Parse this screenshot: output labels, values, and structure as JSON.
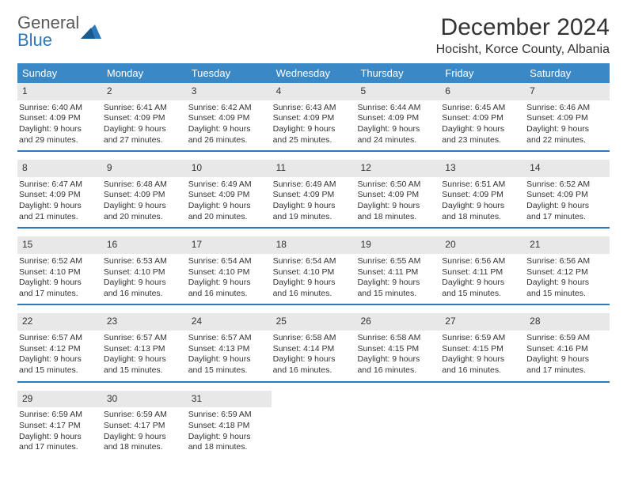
{
  "logo": {
    "word1": "General",
    "word2": "Blue"
  },
  "title": "December 2024",
  "location": "Hocisht, Korce County, Albania",
  "colors": {
    "header_bar": "#3b88c7",
    "week_underline": "#2e78bd",
    "daynum_bg": "#e8e8e8",
    "text": "#333333",
    "logo_blue": "#2e78bd",
    "background": "#ffffff"
  },
  "fonts": {
    "title_size": 30,
    "location_size": 16,
    "weekday_size": 13,
    "body_size": 10.5
  },
  "weekdays": [
    "Sunday",
    "Monday",
    "Tuesday",
    "Wednesday",
    "Thursday",
    "Friday",
    "Saturday"
  ],
  "weeks": [
    [
      {
        "num": "1",
        "sunrise": "Sunrise: 6:40 AM",
        "sunset": "Sunset: 4:09 PM",
        "daylight1": "Daylight: 9 hours",
        "daylight2": "and 29 minutes."
      },
      {
        "num": "2",
        "sunrise": "Sunrise: 6:41 AM",
        "sunset": "Sunset: 4:09 PM",
        "daylight1": "Daylight: 9 hours",
        "daylight2": "and 27 minutes."
      },
      {
        "num": "3",
        "sunrise": "Sunrise: 6:42 AM",
        "sunset": "Sunset: 4:09 PM",
        "daylight1": "Daylight: 9 hours",
        "daylight2": "and 26 minutes."
      },
      {
        "num": "4",
        "sunrise": "Sunrise: 6:43 AM",
        "sunset": "Sunset: 4:09 PM",
        "daylight1": "Daylight: 9 hours",
        "daylight2": "and 25 minutes."
      },
      {
        "num": "5",
        "sunrise": "Sunrise: 6:44 AM",
        "sunset": "Sunset: 4:09 PM",
        "daylight1": "Daylight: 9 hours",
        "daylight2": "and 24 minutes."
      },
      {
        "num": "6",
        "sunrise": "Sunrise: 6:45 AM",
        "sunset": "Sunset: 4:09 PM",
        "daylight1": "Daylight: 9 hours",
        "daylight2": "and 23 minutes."
      },
      {
        "num": "7",
        "sunrise": "Sunrise: 6:46 AM",
        "sunset": "Sunset: 4:09 PM",
        "daylight1": "Daylight: 9 hours",
        "daylight2": "and 22 minutes."
      }
    ],
    [
      {
        "num": "8",
        "sunrise": "Sunrise: 6:47 AM",
        "sunset": "Sunset: 4:09 PM",
        "daylight1": "Daylight: 9 hours",
        "daylight2": "and 21 minutes."
      },
      {
        "num": "9",
        "sunrise": "Sunrise: 6:48 AM",
        "sunset": "Sunset: 4:09 PM",
        "daylight1": "Daylight: 9 hours",
        "daylight2": "and 20 minutes."
      },
      {
        "num": "10",
        "sunrise": "Sunrise: 6:49 AM",
        "sunset": "Sunset: 4:09 PM",
        "daylight1": "Daylight: 9 hours",
        "daylight2": "and 20 minutes."
      },
      {
        "num": "11",
        "sunrise": "Sunrise: 6:49 AM",
        "sunset": "Sunset: 4:09 PM",
        "daylight1": "Daylight: 9 hours",
        "daylight2": "and 19 minutes."
      },
      {
        "num": "12",
        "sunrise": "Sunrise: 6:50 AM",
        "sunset": "Sunset: 4:09 PM",
        "daylight1": "Daylight: 9 hours",
        "daylight2": "and 18 minutes."
      },
      {
        "num": "13",
        "sunrise": "Sunrise: 6:51 AM",
        "sunset": "Sunset: 4:09 PM",
        "daylight1": "Daylight: 9 hours",
        "daylight2": "and 18 minutes."
      },
      {
        "num": "14",
        "sunrise": "Sunrise: 6:52 AM",
        "sunset": "Sunset: 4:09 PM",
        "daylight1": "Daylight: 9 hours",
        "daylight2": "and 17 minutes."
      }
    ],
    [
      {
        "num": "15",
        "sunrise": "Sunrise: 6:52 AM",
        "sunset": "Sunset: 4:10 PM",
        "daylight1": "Daylight: 9 hours",
        "daylight2": "and 17 minutes."
      },
      {
        "num": "16",
        "sunrise": "Sunrise: 6:53 AM",
        "sunset": "Sunset: 4:10 PM",
        "daylight1": "Daylight: 9 hours",
        "daylight2": "and 16 minutes."
      },
      {
        "num": "17",
        "sunrise": "Sunrise: 6:54 AM",
        "sunset": "Sunset: 4:10 PM",
        "daylight1": "Daylight: 9 hours",
        "daylight2": "and 16 minutes."
      },
      {
        "num": "18",
        "sunrise": "Sunrise: 6:54 AM",
        "sunset": "Sunset: 4:10 PM",
        "daylight1": "Daylight: 9 hours",
        "daylight2": "and 16 minutes."
      },
      {
        "num": "19",
        "sunrise": "Sunrise: 6:55 AM",
        "sunset": "Sunset: 4:11 PM",
        "daylight1": "Daylight: 9 hours",
        "daylight2": "and 15 minutes."
      },
      {
        "num": "20",
        "sunrise": "Sunrise: 6:56 AM",
        "sunset": "Sunset: 4:11 PM",
        "daylight1": "Daylight: 9 hours",
        "daylight2": "and 15 minutes."
      },
      {
        "num": "21",
        "sunrise": "Sunrise: 6:56 AM",
        "sunset": "Sunset: 4:12 PM",
        "daylight1": "Daylight: 9 hours",
        "daylight2": "and 15 minutes."
      }
    ],
    [
      {
        "num": "22",
        "sunrise": "Sunrise: 6:57 AM",
        "sunset": "Sunset: 4:12 PM",
        "daylight1": "Daylight: 9 hours",
        "daylight2": "and 15 minutes."
      },
      {
        "num": "23",
        "sunrise": "Sunrise: 6:57 AM",
        "sunset": "Sunset: 4:13 PM",
        "daylight1": "Daylight: 9 hours",
        "daylight2": "and 15 minutes."
      },
      {
        "num": "24",
        "sunrise": "Sunrise: 6:57 AM",
        "sunset": "Sunset: 4:13 PM",
        "daylight1": "Daylight: 9 hours",
        "daylight2": "and 15 minutes."
      },
      {
        "num": "25",
        "sunrise": "Sunrise: 6:58 AM",
        "sunset": "Sunset: 4:14 PM",
        "daylight1": "Daylight: 9 hours",
        "daylight2": "and 16 minutes."
      },
      {
        "num": "26",
        "sunrise": "Sunrise: 6:58 AM",
        "sunset": "Sunset: 4:15 PM",
        "daylight1": "Daylight: 9 hours",
        "daylight2": "and 16 minutes."
      },
      {
        "num": "27",
        "sunrise": "Sunrise: 6:59 AM",
        "sunset": "Sunset: 4:15 PM",
        "daylight1": "Daylight: 9 hours",
        "daylight2": "and 16 minutes."
      },
      {
        "num": "28",
        "sunrise": "Sunrise: 6:59 AM",
        "sunset": "Sunset: 4:16 PM",
        "daylight1": "Daylight: 9 hours",
        "daylight2": "and 17 minutes."
      }
    ],
    [
      {
        "num": "29",
        "sunrise": "Sunrise: 6:59 AM",
        "sunset": "Sunset: 4:17 PM",
        "daylight1": "Daylight: 9 hours",
        "daylight2": "and 17 minutes."
      },
      {
        "num": "30",
        "sunrise": "Sunrise: 6:59 AM",
        "sunset": "Sunset: 4:17 PM",
        "daylight1": "Daylight: 9 hours",
        "daylight2": "and 18 minutes."
      },
      {
        "num": "31",
        "sunrise": "Sunrise: 6:59 AM",
        "sunset": "Sunset: 4:18 PM",
        "daylight1": "Daylight: 9 hours",
        "daylight2": "and 18 minutes."
      },
      {
        "empty": true
      },
      {
        "empty": true
      },
      {
        "empty": true
      },
      {
        "empty": true
      }
    ]
  ]
}
